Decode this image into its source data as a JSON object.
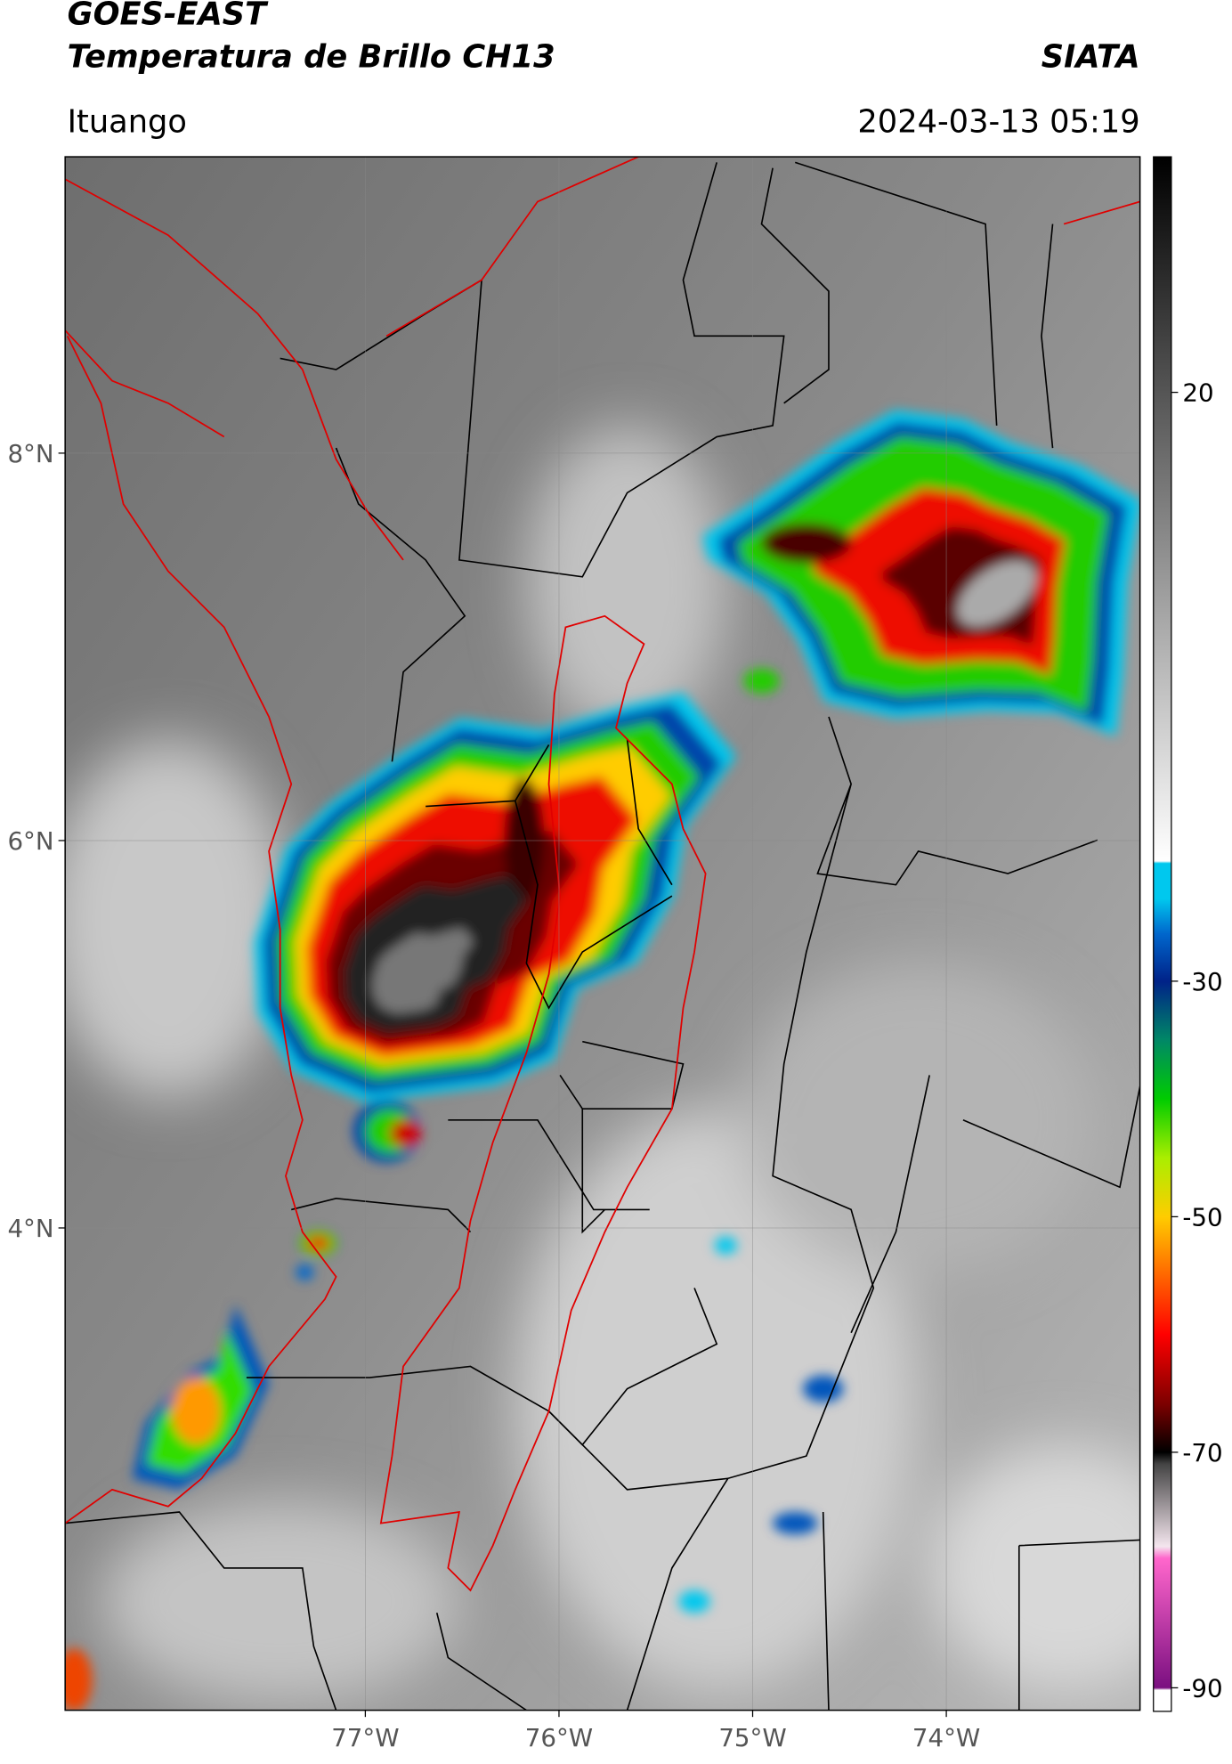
{
  "header": {
    "title": "GOES-EAST",
    "subtitle": "Temperatura de Brillo CH13",
    "agency": "SIATA",
    "location": "Ituango",
    "datetime": "2024-03-13 05:19"
  },
  "map": {
    "xlim": [
      -78.55,
      -73.0
    ],
    "ylim": [
      1.51,
      9.53
    ],
    "xticks": [
      {
        "value": -77,
        "label": "77°W"
      },
      {
        "value": -76,
        "label": "76°W"
      },
      {
        "value": -75,
        "label": "75°W"
      },
      {
        "value": -74,
        "label": "74°W"
      }
    ],
    "yticks": [
      {
        "value": 8,
        "label": "8°N"
      },
      {
        "value": 6,
        "label": "6°N"
      },
      {
        "value": 4,
        "label": "4°N"
      }
    ],
    "grid": true
  },
  "colorbar": {
    "range": [
      -92,
      40
    ],
    "ticks": [
      20,
      -30,
      -50,
      -70,
      -90
    ],
    "colormap": [
      {
        "value": -92,
        "color": "#ffffff"
      },
      {
        "value": -90.2,
        "color": "#ffffff"
      },
      {
        "value": -90,
        "color": "#7a0f80"
      },
      {
        "value": -79,
        "color": "#ff66cc"
      },
      {
        "value": -78,
        "color": "#f4e6ee"
      },
      {
        "value": -71,
        "color": "#444444"
      },
      {
        "value": -70,
        "color": "#000000"
      },
      {
        "value": -66,
        "color": "#7a0000"
      },
      {
        "value": -60,
        "color": "#ff0000"
      },
      {
        "value": -55,
        "color": "#ff6600"
      },
      {
        "value": -50,
        "color": "#ffcc00"
      },
      {
        "value": -45,
        "color": "#aaee00"
      },
      {
        "value": -40,
        "color": "#00cc00"
      },
      {
        "value": -35,
        "color": "#008866"
      },
      {
        "value": -30,
        "color": "#002288"
      },
      {
        "value": -26,
        "color": "#0066cc"
      },
      {
        "value": -23,
        "color": "#00c8ee"
      },
      {
        "value": -20,
        "color": "#00c8ee"
      },
      {
        "value": -19.8,
        "color": "#ffffff"
      },
      {
        "value": 40,
        "color": "#000000"
      }
    ]
  }
}
